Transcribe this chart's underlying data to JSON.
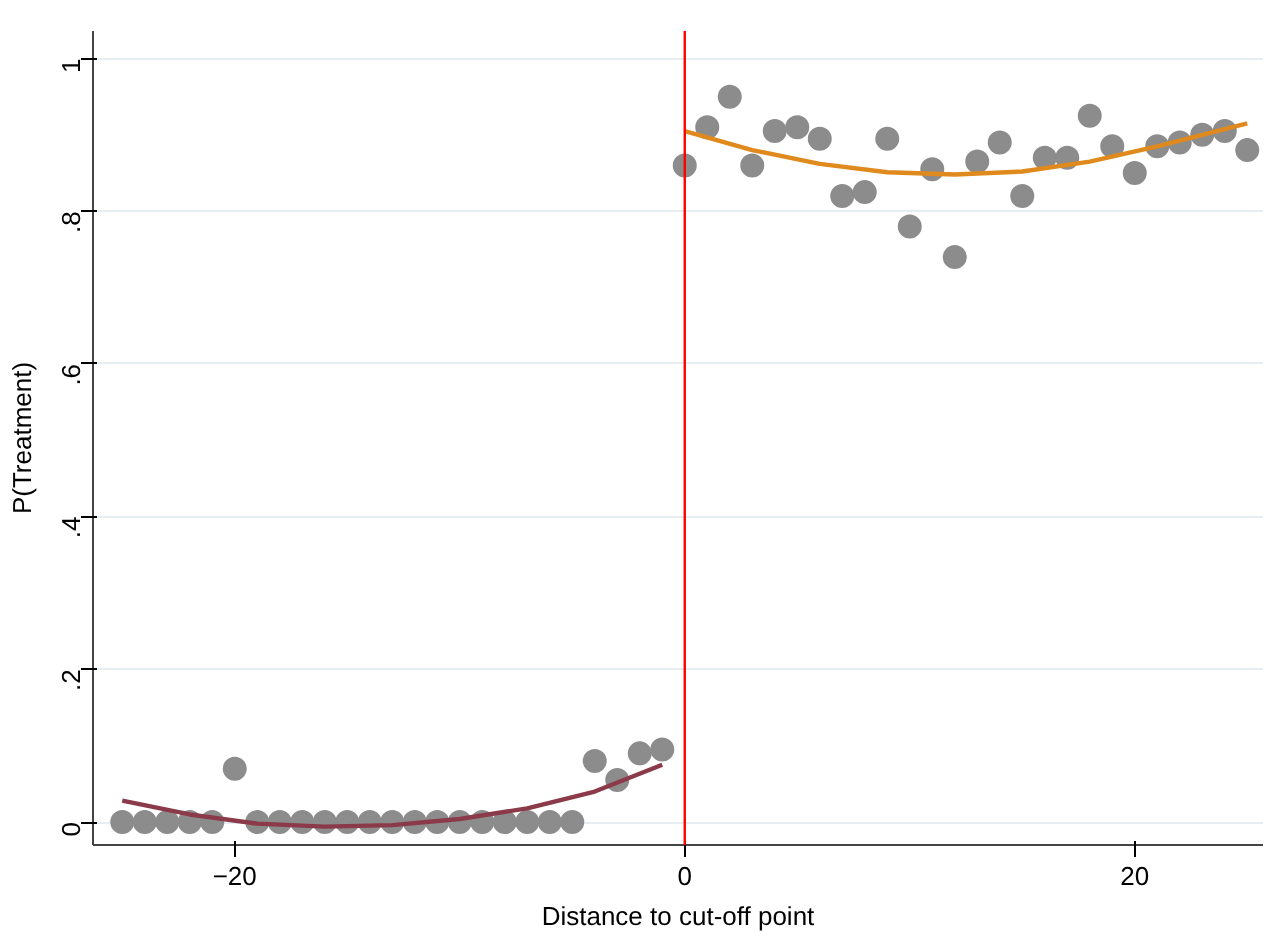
{
  "chart_data": {
    "type": "scatter",
    "xlabel": "Distance to cut-off point",
    "ylabel": "P(Treatment)",
    "xlim": [
      -26.3,
      25.7
    ],
    "ylim": [
      -0.03,
      1.036
    ],
    "xticks": [
      -20,
      0,
      20
    ],
    "yticks": [
      0,
      {
        "value": 0.2,
        "label": ".2"
      },
      {
        "value": 0.4,
        "label": ".4"
      },
      {
        "value": 0.6,
        "label": ".6"
      },
      {
        "value": 0.8,
        "label": ".8"
      },
      1
    ],
    "grid": "y",
    "series": [
      {
        "marker": "circle",
        "color": "#8c8c8c",
        "x": [
          -25,
          -24,
          -23,
          -22,
          -21,
          -20,
          -19,
          -18,
          -17,
          -16,
          -15,
          -14,
          -13,
          -12,
          -11,
          -10,
          -9,
          -8,
          -7,
          -6,
          -5,
          -4,
          -3,
          -2,
          -1
        ],
        "values": [
          0,
          0,
          0,
          0,
          0,
          0.07,
          0,
          0,
          0,
          0,
          0,
          0,
          0,
          0,
          0,
          0,
          0,
          0,
          0,
          0,
          0,
          0.08,
          0.055,
          0.09,
          0.095
        ]
      },
      {
        "marker": "circle",
        "color": "#8c8c8c",
        "x": [
          0,
          1,
          2,
          3,
          4,
          5,
          6,
          7,
          8,
          9,
          10,
          11,
          12,
          13,
          14,
          15,
          16,
          17,
          18,
          19,
          20,
          21,
          22,
          23,
          24,
          25
        ],
        "values": [
          0.86,
          0.91,
          0.95,
          0.86,
          0.905,
          0.91,
          0.895,
          0.82,
          0.825,
          0.895,
          0.78,
          0.855,
          0.74,
          0.865,
          0.89,
          0.82,
          0.87,
          0.87,
          0.925,
          0.885,
          0.85,
          0.885,
          0.89,
          0.9,
          0.905,
          0.88
        ]
      },
      {
        "type": "line",
        "color": "#8b3a4a",
        "x": [
          -25,
          -22,
          -19,
          -16,
          -13,
          -10,
          -7,
          -4,
          -1
        ],
        "values": [
          0.028,
          0.01,
          -0.002,
          -0.006,
          -0.004,
          0.004,
          0.018,
          0.04,
          0.075
        ]
      },
      {
        "type": "line",
        "color": "#e08a1e",
        "x": [
          0,
          3,
          6,
          9,
          12,
          15,
          18,
          21,
          25
        ],
        "values": [
          0.905,
          0.88,
          0.862,
          0.851,
          0.848,
          0.852,
          0.865,
          0.885,
          0.915
        ]
      }
    ],
    "ref_lines": [
      {
        "axis": "x",
        "value": 0,
        "color": "#ff0000"
      }
    ]
  }
}
